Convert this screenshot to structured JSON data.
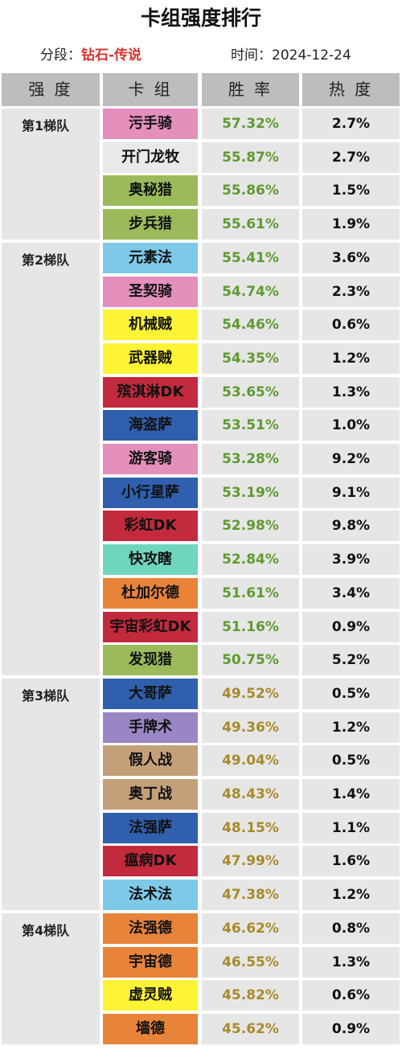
{
  "title": "卡组强度排行",
  "segment": {
    "label": "分段：",
    "value": "钻石-传说"
  },
  "date": {
    "label": "时间：",
    "value": "2024-12-24"
  },
  "headers": {
    "tier": "强 度",
    "deck": "卡 组",
    "winrate": "胜 率",
    "popularity": "热 度"
  },
  "tiers": [
    "第1梯队",
    "第2梯队",
    "第3梯队",
    "第4梯队"
  ],
  "colors": {
    "winrate_high": "#5f9a30",
    "winrate_low": "#a88a2a",
    "header_bg": "#bdbdbd",
    "cell_bg": "#e6e6e6",
    "segment_value": "#d9342b"
  },
  "rows": [
    {
      "deck": "污手骑",
      "winrate": "57.32%",
      "popularity": "2.7%",
      "color": "#e58fbd",
      "text_color": "#111111",
      "tier": 0
    },
    {
      "deck": "开门龙牧",
      "winrate": "55.87%",
      "popularity": "2.7%",
      "color": "#e9e9e9",
      "text_color": "#111111",
      "tier": 0
    },
    {
      "deck": "奥秘猎",
      "winrate": "55.86%",
      "popularity": "1.5%",
      "color": "#9bbb5a",
      "text_color": "#111111",
      "tier": 0
    },
    {
      "deck": "步兵猎",
      "winrate": "55.61%",
      "popularity": "1.9%",
      "color": "#9bbb5a",
      "text_color": "#111111",
      "tier": 0
    },
    {
      "deck": "元素法",
      "winrate": "55.41%",
      "popularity": "3.6%",
      "color": "#7dc9e8",
      "text_color": "#111111",
      "tier": 1
    },
    {
      "deck": "圣契骑",
      "winrate": "54.74%",
      "popularity": "2.3%",
      "color": "#e58fbd",
      "text_color": "#111111",
      "tier": 1
    },
    {
      "deck": "机械贼",
      "winrate": "54.46%",
      "popularity": "0.6%",
      "color": "#fef335",
      "text_color": "#111111",
      "tier": 1
    },
    {
      "deck": "武器贼",
      "winrate": "54.35%",
      "popularity": "1.2%",
      "color": "#fef335",
      "text_color": "#111111",
      "tier": 1
    },
    {
      "deck": "殡淇淋DK",
      "winrate": "53.65%",
      "popularity": "1.3%",
      "color": "#c32a3d",
      "text_color": "#111111",
      "tier": 1
    },
    {
      "deck": "海盗萨",
      "winrate": "53.51%",
      "popularity": "1.0%",
      "color": "#2f5fad",
      "text_color": "#111111",
      "tier": 1
    },
    {
      "deck": "游客骑",
      "winrate": "53.28%",
      "popularity": "9.2%",
      "color": "#e58fbd",
      "text_color": "#111111",
      "tier": 1
    },
    {
      "deck": "小行星萨",
      "winrate": "53.19%",
      "popularity": "9.1%",
      "color": "#2f5fad",
      "text_color": "#111111",
      "tier": 1
    },
    {
      "deck": "彩虹DK",
      "winrate": "52.98%",
      "popularity": "9.8%",
      "color": "#c32a3d",
      "text_color": "#111111",
      "tier": 1
    },
    {
      "deck": "快攻瞎",
      "winrate": "52.84%",
      "popularity": "3.9%",
      "color": "#6fd6bd",
      "text_color": "#111111",
      "tier": 1
    },
    {
      "deck": "杜加尔德",
      "winrate": "51.61%",
      "popularity": "3.4%",
      "color": "#e8843a",
      "text_color": "#111111",
      "tier": 1
    },
    {
      "deck": "宇宙彩虹DK",
      "winrate": "51.16%",
      "popularity": "0.9%",
      "color": "#c32a3d",
      "text_color": "#111111",
      "tier": 1
    },
    {
      "deck": "发现猎",
      "winrate": "50.75%",
      "popularity": "5.2%",
      "color": "#9bbb5a",
      "text_color": "#111111",
      "tier": 1
    },
    {
      "deck": "大哥萨",
      "winrate": "49.52%",
      "popularity": "0.5%",
      "color": "#2f5fad",
      "text_color": "#111111",
      "tier": 2
    },
    {
      "deck": "手牌术",
      "winrate": "49.36%",
      "popularity": "1.2%",
      "color": "#9a86c4",
      "text_color": "#111111",
      "tier": 2
    },
    {
      "deck": "假人战",
      "winrate": "49.04%",
      "popularity": "0.5%",
      "color": "#c4a07a",
      "text_color": "#111111",
      "tier": 2
    },
    {
      "deck": "奥丁战",
      "winrate": "48.43%",
      "popularity": "1.4%",
      "color": "#c4a07a",
      "text_color": "#111111",
      "tier": 2
    },
    {
      "deck": "法强萨",
      "winrate": "48.15%",
      "popularity": "1.1%",
      "color": "#2f5fad",
      "text_color": "#111111",
      "tier": 2
    },
    {
      "deck": "瘟病DK",
      "winrate": "47.99%",
      "popularity": "1.6%",
      "color": "#c32a3d",
      "text_color": "#111111",
      "tier": 2
    },
    {
      "deck": "法术法",
      "winrate": "47.38%",
      "popularity": "1.2%",
      "color": "#7dc9e8",
      "text_color": "#111111",
      "tier": 2
    },
    {
      "deck": "法强德",
      "winrate": "46.62%",
      "popularity": "0.8%",
      "color": "#e8843a",
      "text_color": "#111111",
      "tier": 3
    },
    {
      "deck": "宇宙德",
      "winrate": "46.55%",
      "popularity": "1.3%",
      "color": "#e8843a",
      "text_color": "#111111",
      "tier": 3
    },
    {
      "deck": "虚灵贼",
      "winrate": "45.82%",
      "popularity": "0.6%",
      "color": "#fef335",
      "text_color": "#111111",
      "tier": 3
    },
    {
      "deck": "墙德",
      "winrate": "45.62%",
      "popularity": "0.9%",
      "color": "#e8843a",
      "text_color": "#111111",
      "tier": 3
    }
  ]
}
